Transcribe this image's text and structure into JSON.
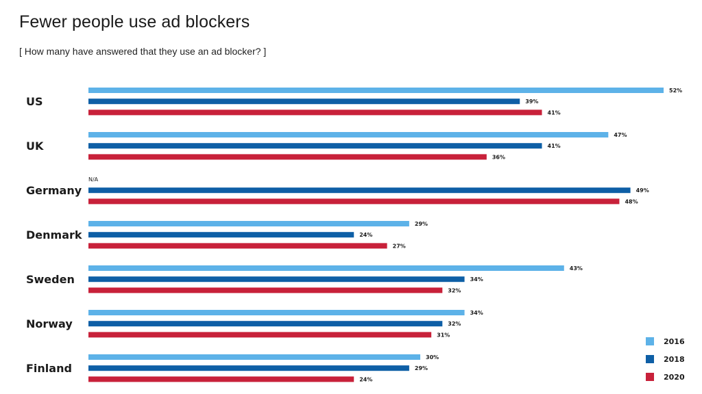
{
  "header": {
    "title": "Fewer people use ad blockers",
    "subtitle": "[ How many have answered that they use an ad blocker? ]"
  },
  "chart_data": {
    "type": "bar",
    "orientation": "horizontal",
    "title": "Fewer people use ad blockers",
    "subtitle": "[ How many have answered that they use an ad blocker? ]",
    "categories": [
      "US",
      "UK",
      "Germany",
      "Denmark",
      "Sweden",
      "Norway",
      "Finland"
    ],
    "series": [
      {
        "name": "2016",
        "color": "#5DB2E8",
        "values": [
          52,
          47,
          null,
          29,
          43,
          34,
          30
        ],
        "labels": [
          "52%",
          "47%",
          "N/A",
          "29%",
          "43%",
          "34%",
          "30%"
        ]
      },
      {
        "name": "2018",
        "color": "#0E5FA6",
        "values": [
          39,
          41,
          49,
          24,
          34,
          32,
          29
        ],
        "labels": [
          "39%",
          "41%",
          "49%",
          "24%",
          "34%",
          "32%",
          "29%"
        ]
      },
      {
        "name": "2020",
        "color": "#C8213A",
        "values": [
          41,
          36,
          48,
          27,
          32,
          31,
          24
        ],
        "labels": [
          "41%",
          "36%",
          "48%",
          "27%",
          "32%",
          "31%",
          "24%"
        ]
      }
    ],
    "xlim": [
      0,
      52
    ],
    "xlabel": "",
    "ylabel": "",
    "grid": false,
    "legend": "bottom-right",
    "data_labels": true
  }
}
